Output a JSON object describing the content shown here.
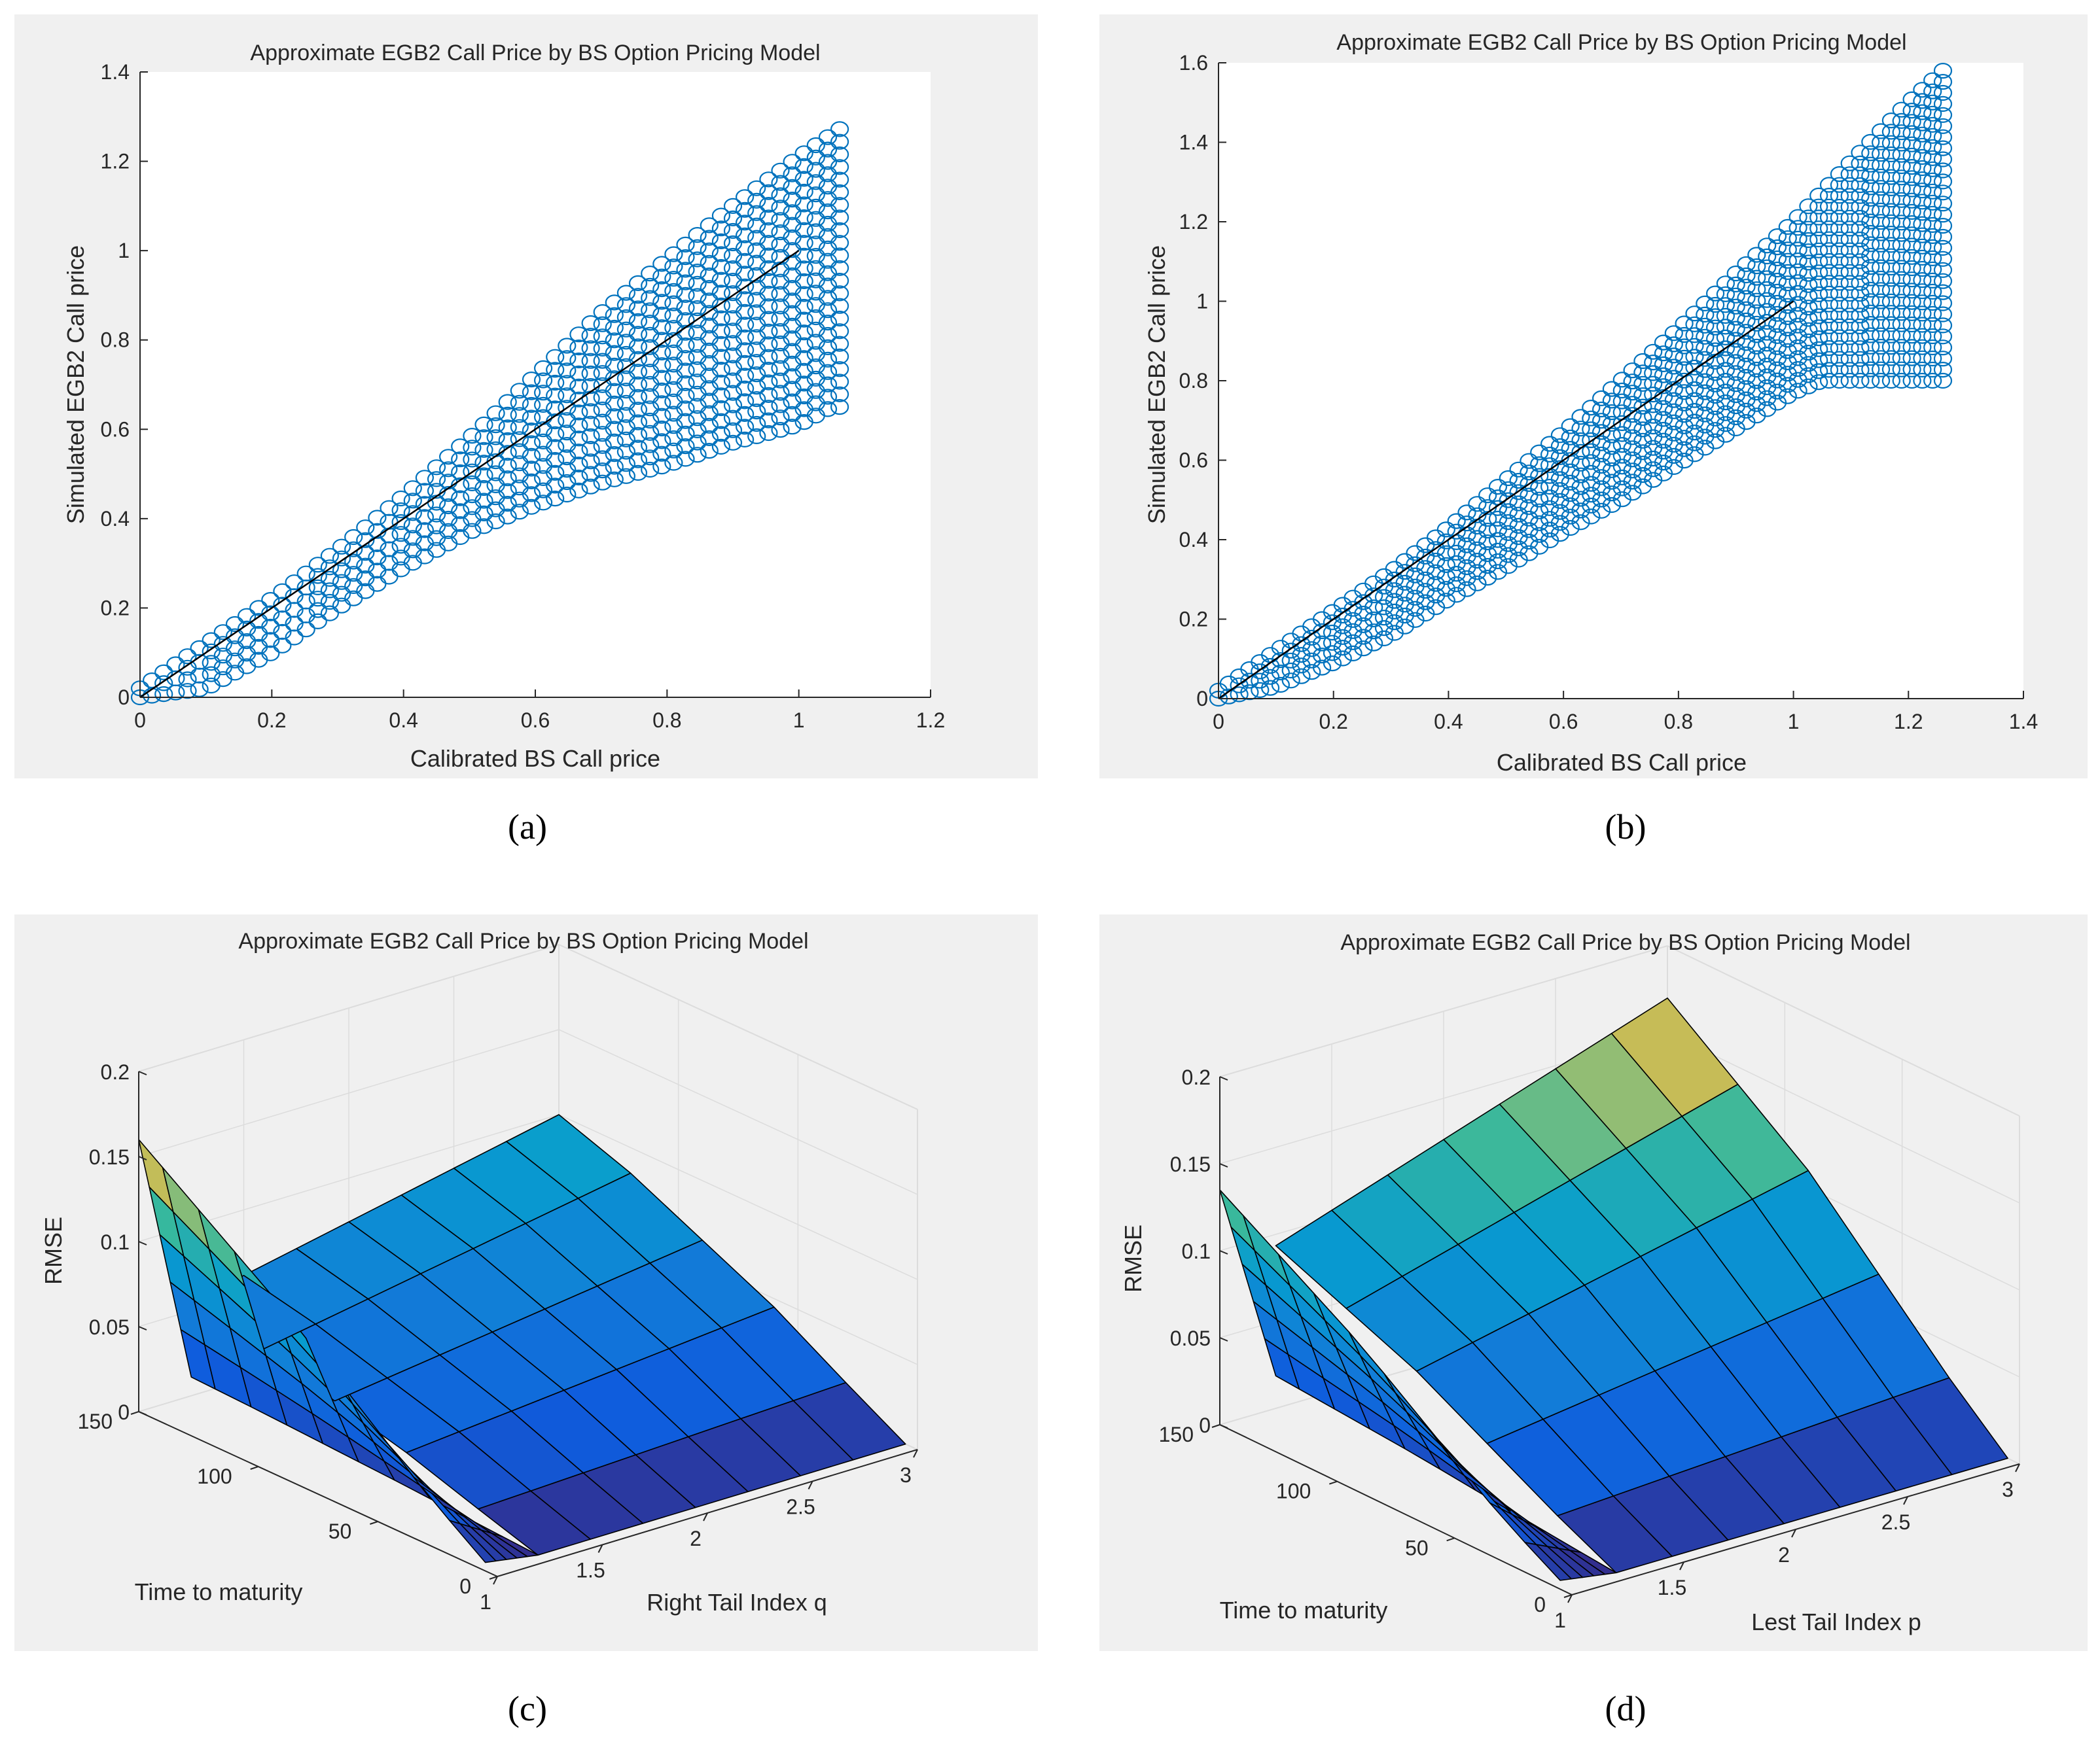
{
  "colors": {
    "figure_bg": "#f0f0f0",
    "axes_bg": "#ffffff",
    "marker": "#0072bd",
    "diag_line": "#000000",
    "grid": "#dcdcdc",
    "axis_text": "#262626"
  },
  "chart_data": [
    {
      "type": "scatter",
      "label": "(a)",
      "title": "Approximate EGB2 Call Price by BS Option Pricing Model",
      "xlabel": "Calibrated BS Call price",
      "ylabel": "Simulated EGB2 Call price",
      "xlim": [
        0,
        1.2
      ],
      "ylim": [
        0,
        1.4
      ],
      "xticks": [
        0,
        0.2,
        0.4,
        0.6,
        0.8,
        1,
        1.2
      ],
      "yticks": [
        0,
        0.2,
        0.4,
        0.6,
        0.8,
        1,
        1.2,
        1.4
      ],
      "reference_line": {
        "x": [
          0,
          1
        ],
        "y": [
          0,
          1
        ]
      },
      "series": [
        {
          "name": "upper envelope",
          "x": [
            0,
            0.1,
            0.2,
            0.3,
            0.4,
            0.5,
            0.6,
            0.7,
            0.8,
            0.9,
            1.0,
            1.07
          ],
          "y": [
            0.02,
            0.12,
            0.22,
            0.33,
            0.45,
            0.58,
            0.72,
            0.86,
            0.98,
            1.1,
            1.21,
            1.28
          ]
        },
        {
          "name": "lower envelope",
          "x": [
            0,
            0.1,
            0.2,
            0.3,
            0.4,
            0.5,
            0.6,
            0.7,
            0.8,
            0.9,
            1.0,
            1.05
          ],
          "y": [
            0.0,
            0.02,
            0.1,
            0.2,
            0.29,
            0.37,
            0.43,
            0.48,
            0.52,
            0.57,
            0.61,
            0.65
          ]
        }
      ]
    },
    {
      "type": "scatter",
      "label": "(b)",
      "title": "Approximate EGB2 Call Price by BS Option Pricing Model",
      "xlabel": "Calibrated BS Call price",
      "ylabel": "Simulated EGB2 Call price",
      "xlim": [
        0,
        1.4
      ],
      "ylim": [
        0,
        1.6
      ],
      "xticks": [
        0,
        0.2,
        0.4,
        0.6,
        0.8,
        1,
        1.2,
        1.4
      ],
      "yticks": [
        0,
        0.2,
        0.4,
        0.6,
        0.8,
        1,
        1.2,
        1.4,
        1.6
      ],
      "reference_line": {
        "x": [
          0,
          1
        ],
        "y": [
          0,
          1
        ]
      },
      "series": [
        {
          "name": "upper envelope",
          "x": [
            0,
            0.1,
            0.2,
            0.3,
            0.4,
            0.5,
            0.6,
            0.7,
            0.8,
            0.9,
            1.0,
            1.1,
            1.2,
            1.26
          ],
          "y": [
            0.02,
            0.12,
            0.22,
            0.32,
            0.43,
            0.55,
            0.67,
            0.8,
            0.93,
            1.07,
            1.2,
            1.35,
            1.5,
            1.58
          ]
        },
        {
          "name": "lower envelope",
          "x": [
            0,
            0.1,
            0.2,
            0.3,
            0.4,
            0.5,
            0.6,
            0.7,
            0.8,
            0.9,
            1.0,
            1.05
          ],
          "y": [
            0.0,
            0.03,
            0.09,
            0.16,
            0.25,
            0.33,
            0.42,
            0.5,
            0.59,
            0.68,
            0.77,
            0.8
          ]
        }
      ]
    },
    {
      "type": "surface",
      "label": "(c)",
      "title": "Approximate EGB2 Call Price by BS Option Pricing Model",
      "xlabel": "Right Tail Index q",
      "ylabel": "Time to maturity",
      "zlabel": "RMSE",
      "xlim": [
        1,
        3
      ],
      "ylim": [
        0,
        150
      ],
      "zlim": [
        0,
        0.2
      ],
      "xticks": [
        "1",
        "1.5",
        "2",
        "2.5",
        "3"
      ],
      "yticks": [
        "0",
        "50",
        "100",
        "150"
      ],
      "zticks": [
        "0",
        "0.05",
        "0.1",
        "0.15",
        "0.2"
      ],
      "tail_index": [
        1.25,
        1.5,
        1.75,
        2,
        2.25,
        2.5,
        2.75,
        3
      ],
      "maturity": [
        5,
        30,
        60,
        90,
        120,
        150
      ],
      "rmse_at_q1": [
        0.005,
        0.03,
        0.065,
        0.1,
        0.13,
        0.16
      ],
      "rmse_at_q3": [
        0.0,
        0.02,
        0.045,
        0.065,
        0.085,
        0.1
      ]
    },
    {
      "type": "surface",
      "label": "(d)",
      "title": "Approximate EGB2 Call Price by BS Option Pricing Model",
      "xlabel": "Lest Tail Index p",
      "ylabel": "Time to maturity",
      "zlabel": "RMSE",
      "xlim": [
        1,
        3
      ],
      "ylim": [
        0,
        150
      ],
      "zlim": [
        0,
        0.2
      ],
      "xticks": [
        "1",
        "1.5",
        "2",
        "2.5",
        "3"
      ],
      "yticks": [
        "0",
        "50",
        "100",
        "150"
      ],
      "zticks": [
        "0",
        "0.05",
        "0.1",
        "0.15",
        "0.2"
      ],
      "tail_index": [
        1.25,
        1.5,
        1.75,
        2,
        2.25,
        2.5,
        2.75,
        3
      ],
      "maturity": [
        5,
        30,
        60,
        90,
        120,
        150
      ],
      "rmse_at_p1": [
        0.005,
        0.025,
        0.055,
        0.085,
        0.11,
        0.135
      ],
      "rmse_at_p3": [
        0.0,
        0.03,
        0.07,
        0.11,
        0.14,
        0.17
      ]
    }
  ]
}
